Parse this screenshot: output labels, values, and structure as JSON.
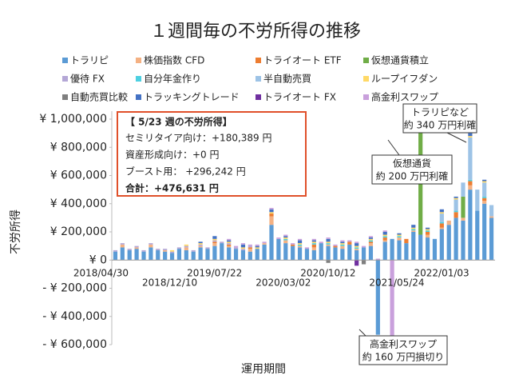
{
  "chart_data": {
    "type": "bar",
    "stacked": true,
    "title": "１週間毎の不労所得の推移",
    "x_label": "運用期間",
    "y_label": "不労所得",
    "categories": [
      "2018/04/30",
      null,
      null,
      null,
      null,
      null,
      null,
      null,
      "2018/12/10",
      null,
      null,
      null,
      null,
      null,
      null,
      null,
      "2019/07/22",
      null,
      null,
      null,
      null,
      null,
      null,
      null,
      "2020/03/02",
      null,
      null,
      null,
      null,
      null,
      null,
      null,
      "2020/10/12",
      null,
      null,
      null,
      null,
      null,
      null,
      null,
      "2021/05/24",
      null,
      null,
      null,
      null,
      null,
      null,
      null,
      "2022/01/03",
      null,
      null,
      null,
      null,
      null
    ],
    "ylim": [
      -600000,
      1000000
    ],
    "yticks": [
      {
        "value": -600000,
        "label": "- ¥ 600,000"
      },
      {
        "value": -400000,
        "label": "- ¥ 400,000"
      },
      {
        "value": -200000,
        "label": "- ¥ 200,000"
      },
      {
        "value": 0,
        "label": "¥ 0"
      },
      {
        "value": 200000,
        "label": "¥ 200,000"
      },
      {
        "value": 400000,
        "label": "¥ 400,000"
      },
      {
        "value": 600000,
        "label": "¥ 600,000"
      },
      {
        "value": 800000,
        "label": "¥ 800,000"
      },
      {
        "value": 1000000,
        "label": "¥ 1,000,000"
      }
    ],
    "negative_tick_color": "#c00000",
    "series": [
      {
        "name": "トラリピ",
        "color": "#5b9bd5",
        "values": [
          60000,
          90000,
          70000,
          80000,
          60000,
          90000,
          70000,
          60000,
          50000,
          80000,
          70000,
          60000,
          90000,
          80000,
          100000,
          120000,
          90000,
          80000,
          70000,
          60000,
          80000,
          110000,
          250000,
          150000,
          120000,
          100000,
          90000,
          80000,
          70000,
          120000,
          100000,
          90000,
          80000,
          110000,
          70000,
          90000,
          100000,
          -530000,
          130000,
          150000,
          140000,
          120000,
          200000,
          180000,
          160000,
          150000,
          220000,
          250000,
          300000,
          280000,
          500000,
          350000,
          400000,
          300000
        ]
      },
      {
        "name": "株価指数 CFD",
        "color": "#f4b183",
        "values": [
          0,
          20000,
          0,
          10000,
          0,
          20000,
          0,
          10000,
          0,
          0,
          20000,
          0,
          10000,
          0,
          20000,
          0,
          10000,
          0,
          0,
          20000,
          0,
          10000,
          60000,
          0,
          20000,
          0,
          10000,
          0,
          20000,
          0,
          10000,
          0,
          20000,
          0,
          10000,
          0,
          20000,
          0,
          10000,
          0,
          20000,
          0,
          10000,
          0,
          20000,
          0,
          10000,
          30000,
          0,
          20000,
          30000,
          0,
          20000,
          10000
        ]
      },
      {
        "name": "トライオート ETF",
        "color": "#ed7d31",
        "values": [
          0,
          0,
          0,
          0,
          0,
          0,
          0,
          0,
          0,
          0,
          0,
          0,
          0,
          0,
          10000,
          0,
          10000,
          0,
          0,
          10000,
          0,
          0,
          20000,
          0,
          0,
          10000,
          0,
          0,
          20000,
          0,
          0,
          10000,
          0,
          20000,
          0,
          0,
          10000,
          0,
          20000,
          0,
          0,
          30000,
          0,
          0,
          20000,
          0,
          30000,
          0,
          40000,
          0,
          30000,
          0,
          20000,
          0
        ]
      },
      {
        "name": "仮想通貨積立",
        "color": "#70ad47",
        "values": [
          0,
          0,
          0,
          0,
          0,
          0,
          0,
          0,
          0,
          0,
          0,
          0,
          0,
          0,
          0,
          0,
          0,
          0,
          0,
          0,
          0,
          0,
          0,
          0,
          0,
          0,
          0,
          0,
          0,
          0,
          0,
          0,
          0,
          0,
          0,
          0,
          0,
          0,
          0,
          0,
          0,
          0,
          0,
          880000,
          0,
          0,
          0,
          0,
          0,
          150000,
          0,
          0,
          0,
          0
        ]
      },
      {
        "name": "優待 FX",
        "color": "#b4a7d6",
        "values": [
          10000,
          10000,
          10000,
          10000,
          10000,
          10000,
          10000,
          10000,
          10000,
          10000,
          10000,
          10000,
          10000,
          10000,
          10000,
          10000,
          10000,
          10000,
          10000,
          10000,
          0,
          0,
          0,
          0,
          0,
          0,
          0,
          0,
          0,
          0,
          0,
          0,
          0,
          0,
          0,
          0,
          0,
          0,
          0,
          0,
          0,
          0,
          0,
          0,
          0,
          0,
          0,
          0,
          0,
          0,
          0,
          0,
          0,
          0
        ]
      },
      {
        "name": "自分年金作り",
        "color": "#4dd0e1",
        "values": [
          0,
          0,
          0,
          0,
          0,
          0,
          0,
          0,
          0,
          0,
          0,
          0,
          0,
          0,
          0,
          0,
          0,
          0,
          0,
          0,
          0,
          0,
          0,
          0,
          10000,
          0,
          10000,
          0,
          10000,
          0,
          10000,
          0,
          10000,
          0,
          10000,
          0,
          10000,
          0,
          10000,
          0,
          10000,
          0,
          10000,
          0,
          10000,
          0,
          10000,
          0,
          10000,
          0,
          10000,
          0,
          10000,
          0
        ]
      },
      {
        "name": "半自動売買",
        "color": "#9dc3e6",
        "values": [
          0,
          0,
          0,
          0,
          0,
          0,
          0,
          0,
          0,
          0,
          0,
          0,
          0,
          0,
          0,
          0,
          0,
          0,
          0,
          0,
          0,
          0,
          0,
          0,
          0,
          0,
          0,
          0,
          0,
          0,
          0,
          0,
          0,
          0,
          0,
          0,
          0,
          0,
          0,
          0,
          0,
          0,
          0,
          0,
          0,
          0,
          60000,
          0,
          80000,
          100000,
          300000,
          150000,
          100000,
          80000
        ]
      },
      {
        "name": "ループイフダン",
        "color": "#ffd966",
        "values": [
          0,
          0,
          0,
          0,
          0,
          0,
          0,
          0,
          10000,
          0,
          10000,
          0,
          10000,
          0,
          10000,
          0,
          10000,
          0,
          10000,
          0,
          10000,
          0,
          10000,
          0,
          10000,
          0,
          10000,
          0,
          10000,
          0,
          10000,
          0,
          10000,
          0,
          10000,
          0,
          10000,
          0,
          10000,
          0,
          10000,
          0,
          10000,
          0,
          10000,
          0,
          10000,
          0,
          10000,
          0,
          10000,
          0,
          10000,
          0
        ]
      },
      {
        "name": "自動売買比較",
        "color": "#7f7f7f",
        "values": [
          0,
          0,
          0,
          0,
          0,
          0,
          0,
          0,
          0,
          0,
          0,
          0,
          0,
          0,
          0,
          0,
          0,
          0,
          0,
          0,
          0,
          0,
          0,
          0,
          0,
          0,
          0,
          0,
          0,
          0,
          -20000,
          0,
          0,
          0,
          0,
          -30000,
          0,
          0,
          0,
          0,
          0,
          0,
          0,
          0,
          0,
          0,
          0,
          0,
          0,
          0,
          0,
          0,
          0,
          0
        ]
      },
      {
        "name": "トラッキングトレード",
        "color": "#4472c4",
        "values": [
          0,
          0,
          0,
          0,
          0,
          0,
          0,
          0,
          0,
          0,
          0,
          0,
          10000,
          0,
          20000,
          0,
          10000,
          0,
          20000,
          0,
          10000,
          0,
          20000,
          0,
          10000,
          0,
          20000,
          0,
          10000,
          0,
          20000,
          0,
          10000,
          0,
          20000,
          0,
          10000,
          0,
          20000,
          0,
          10000,
          0,
          20000,
          0,
          10000,
          0,
          20000,
          0,
          10000,
          0,
          20000,
          0,
          10000,
          0
        ]
      },
      {
        "name": "トライオート FX",
        "color": "#7030a0",
        "values": [
          0,
          0,
          0,
          0,
          0,
          0,
          0,
          0,
          0,
          0,
          0,
          0,
          0,
          0,
          0,
          0,
          0,
          0,
          0,
          0,
          0,
          0,
          0,
          0,
          0,
          0,
          0,
          0,
          0,
          0,
          0,
          0,
          0,
          0,
          -40000,
          0,
          0,
          0,
          0,
          0,
          0,
          0,
          0,
          0,
          0,
          0,
          0,
          0,
          0,
          0,
          0,
          0,
          0,
          0
        ]
      },
      {
        "name": "高金利スワップ",
        "color": "#c9a0dc",
        "values": [
          0,
          0,
          0,
          0,
          0,
          0,
          0,
          0,
          0,
          0,
          0,
          0,
          0,
          0,
          0,
          0,
          10000,
          10000,
          10000,
          10000,
          10000,
          10000,
          10000,
          10000,
          10000,
          10000,
          10000,
          10000,
          10000,
          10000,
          10000,
          10000,
          10000,
          10000,
          10000,
          10000,
          10000,
          10000,
          10000,
          -600000,
          0,
          0,
          0,
          0,
          0,
          0,
          0,
          0,
          0,
          0,
          0,
          0,
          0,
          0
        ]
      }
    ],
    "info_box": [
      "【 5/23 週の不労所得】",
      "セミリタイア向け：+180,389 円",
      "資産形成向け：+0 円",
      "ブースト用： +296,242 円",
      "合計：+476,631 円"
    ],
    "annotations": [
      [
        "トラリピなど",
        "約 340 万円利確"
      ],
      [
        "仮想通貨",
        "約 200 万円利確"
      ],
      [
        "高金利スワップ",
        "約 160 万円損切り"
      ]
    ]
  }
}
